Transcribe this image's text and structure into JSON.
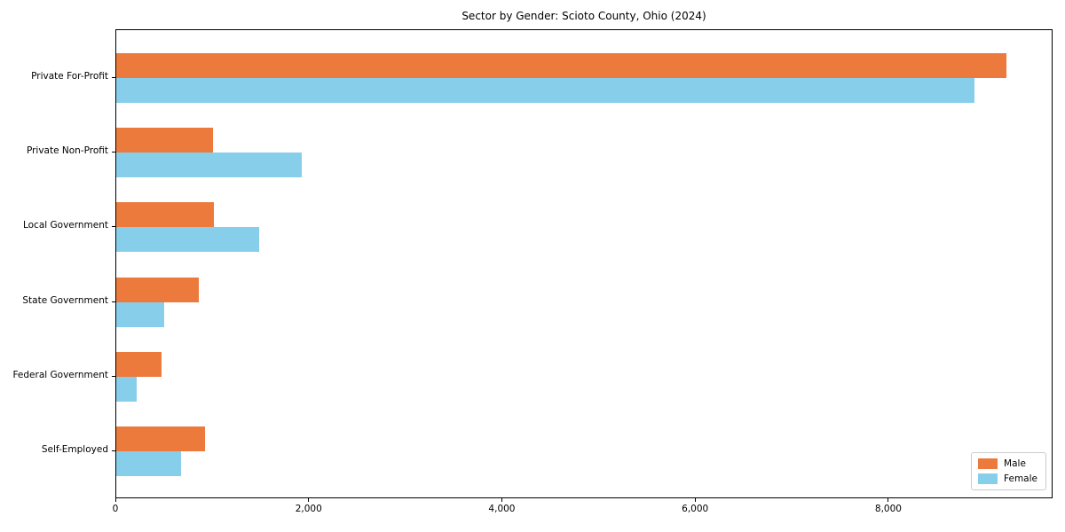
{
  "figure": {
    "background": "#ffffff",
    "text_color": "#000000"
  },
  "chart_data": {
    "type": "bar",
    "orientation": "horizontal",
    "title": "Sector by Gender: Scioto County, Ohio (2024)",
    "xlabel": "",
    "ylabel": "",
    "categories": [
      "Private For-Profit",
      "Private Non-Profit",
      "Local Government",
      "State Government",
      "Federal Government",
      "Self-Employed"
    ],
    "series": [
      {
        "name": "Male",
        "color": "#ec7a3c",
        "values": [
          9230,
          1000,
          1010,
          860,
          470,
          920
        ]
      },
      {
        "name": "Female",
        "color": "#87ceea",
        "values": [
          8900,
          1920,
          1480,
          500,
          210,
          670
        ]
      }
    ],
    "xlim": [
      0,
      9700
    ],
    "xticks": [
      0,
      2000,
      4000,
      6000,
      8000
    ],
    "xtick_labels": [
      "0",
      "2,000",
      "4,000",
      "6,000",
      "8,000"
    ],
    "grid": false,
    "legend": {
      "position": "lower right",
      "entries": [
        "Male",
        "Female"
      ]
    }
  }
}
